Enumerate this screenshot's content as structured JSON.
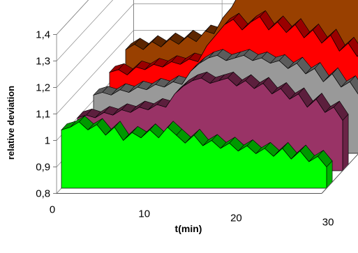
{
  "chart_data": {
    "type": "area",
    "title": "",
    "xlabel": "t(min)",
    "ylabel": "relative deviation",
    "x_tick_labels": [
      "0",
      "10",
      "20",
      "30"
    ],
    "xlim": [
      0,
      30
    ],
    "y_tick_labels": [
      "0,8",
      "0,9",
      "1",
      "1,1",
      "1,2",
      "1,3",
      "1,4"
    ],
    "ylim": [
      0.8,
      1.4
    ],
    "grid": true,
    "legend": "none",
    "reference_line": {
      "color": "#ff0000",
      "y": 1.4,
      "x_start": 10,
      "x_end": 25
    },
    "x": [
      0,
      1,
      2,
      3,
      4,
      5,
      6,
      7,
      8,
      9,
      10,
      11,
      12,
      13,
      14,
      15,
      16,
      17,
      18,
      19,
      20,
      21,
      22,
      23,
      24,
      25,
      26,
      27,
      28,
      29,
      30
    ],
    "series": [
      {
        "color": "#994000",
        "values": [
          1.06,
          1.08,
          1.06,
          1.09,
          1.07,
          1.1,
          1.08,
          1.11,
          1.09,
          1.13,
          1.12,
          1.18,
          1.22,
          1.28,
          1.37,
          1.31,
          1.35,
          1.42,
          1.34,
          1.38,
          1.32,
          1.35,
          1.29,
          1.33,
          1.28,
          1.31,
          1.25,
          1.28,
          1.22,
          1.24,
          1.18
        ]
      },
      {
        "color": "#ff0000",
        "values": [
          1.04,
          1.05,
          1.03,
          1.06,
          1.05,
          1.07,
          1.06,
          1.08,
          1.07,
          1.09,
          1.08,
          1.14,
          1.18,
          1.22,
          1.24,
          1.2,
          1.23,
          1.25,
          1.2,
          1.23,
          1.19,
          1.22,
          1.17,
          1.2,
          1.15,
          1.18,
          1.12,
          1.15,
          1.1,
          1.12,
          1.05
        ]
      },
      {
        "color": "#999999",
        "values": [
          1.02,
          1.03,
          1.02,
          1.04,
          1.03,
          1.05,
          1.04,
          1.06,
          1.05,
          1.07,
          1.06,
          1.11,
          1.14,
          1.16,
          1.17,
          1.15,
          1.16,
          1.17,
          1.15,
          1.16,
          1.14,
          1.15,
          1.12,
          1.14,
          1.1,
          1.12,
          1.07,
          1.1,
          1.05,
          1.07,
          1.02
        ]
      },
      {
        "color": "#993366",
        "values": [
          1.0,
          1.01,
          1.0,
          1.02,
          1.01,
          1.03,
          1.02,
          1.04,
          1.03,
          1.05,
          1.04,
          1.09,
          1.12,
          1.14,
          1.15,
          1.13,
          1.14,
          1.15,
          1.12,
          1.14,
          1.11,
          1.13,
          1.09,
          1.11,
          1.07,
          1.09,
          1.04,
          1.07,
          1.02,
          1.04,
          0.99
        ]
      },
      {
        "color": "#00ff00",
        "values": [
          1.02,
          1.03,
          1.05,
          1.02,
          1.04,
          1.0,
          1.03,
          0.98,
          1.01,
          0.99,
          1.02,
          0.99,
          1.03,
          1.0,
          0.97,
          1.0,
          0.96,
          0.98,
          0.95,
          0.97,
          0.94,
          0.96,
          0.93,
          0.95,
          0.92,
          0.95,
          0.91,
          0.94,
          0.9,
          0.92,
          0.88
        ]
      }
    ]
  }
}
